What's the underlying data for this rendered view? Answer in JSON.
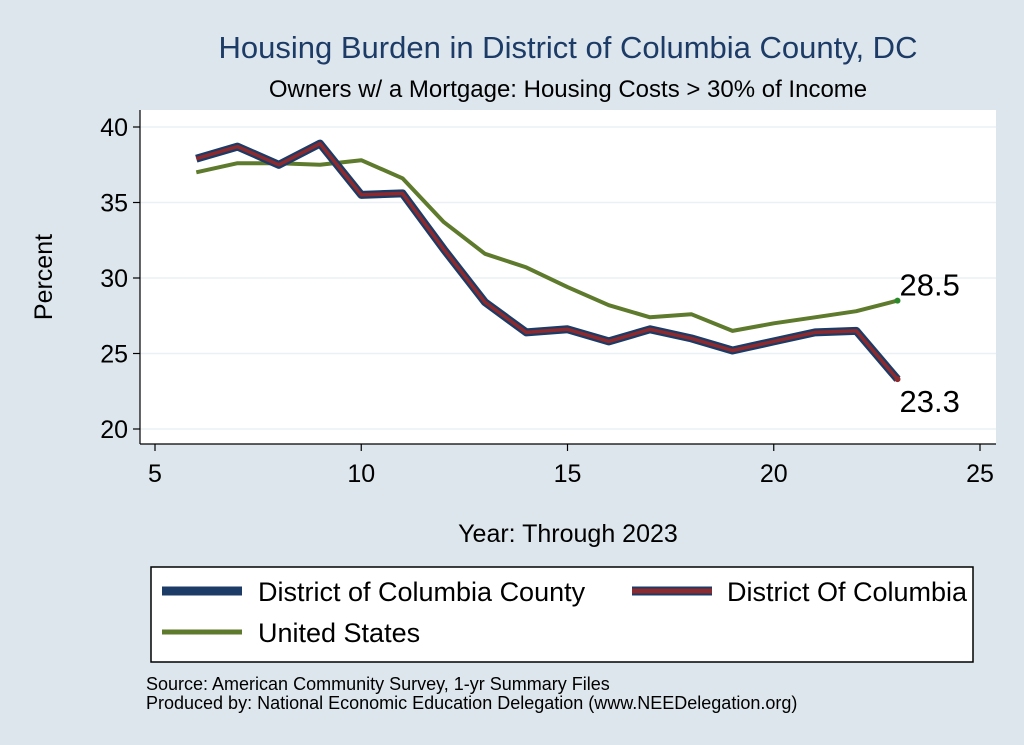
{
  "chart_data": {
    "type": "line",
    "title": "Housing Burden in District of Columbia County, DC",
    "subtitle": "Owners w/ a Mortgage: Housing Costs > 30% of Income",
    "xlabel": "Year: Through 2023",
    "ylabel": "Percent",
    "xlim": [
      5,
      25
    ],
    "ylim": [
      20,
      40
    ],
    "xticks": [
      "5",
      "10",
      "15",
      "20",
      "25"
    ],
    "yticks": [
      "20",
      "25",
      "30",
      "35",
      "40"
    ],
    "grid": true,
    "x": [
      6,
      7,
      8,
      9,
      10,
      11,
      12,
      13,
      14,
      15,
      16,
      17,
      18,
      19,
      20,
      21,
      22,
      23
    ],
    "series": [
      {
        "name": "District of Columbia County",
        "color": "#1c3b66",
        "values": [
          37.9,
          38.7,
          37.5,
          38.9,
          35.5,
          35.6,
          31.9,
          28.4,
          26.4,
          26.6,
          25.8,
          26.6,
          26.0,
          25.2,
          25.8,
          26.4,
          26.5,
          23.3
        ]
      },
      {
        "name": "District Of Columbia",
        "color": "#8c2a2e",
        "values": [
          37.9,
          38.7,
          37.5,
          38.9,
          35.5,
          35.6,
          31.9,
          28.4,
          26.4,
          26.6,
          25.8,
          26.6,
          26.0,
          25.2,
          25.8,
          26.4,
          26.5,
          23.3
        ]
      },
      {
        "name": "United States",
        "color": "#5e7a2c",
        "values": [
          37.0,
          37.6,
          37.6,
          37.5,
          37.8,
          36.6,
          33.7,
          31.6,
          30.7,
          29.4,
          28.2,
          27.4,
          27.6,
          26.5,
          27.0,
          27.4,
          27.8,
          28.5
        ]
      }
    ],
    "end_labels": [
      {
        "text": "28.5",
        "x": 23,
        "y": 28.5
      },
      {
        "text": "23.3",
        "x": 23,
        "y": 23.3
      }
    ],
    "legend_placement": "bottom",
    "notes": [
      "Source: American Community Survey, 1-yr Summary Files",
      "Produced by: National Economic Education Delegation (www.NEEDelegation.org)"
    ]
  }
}
